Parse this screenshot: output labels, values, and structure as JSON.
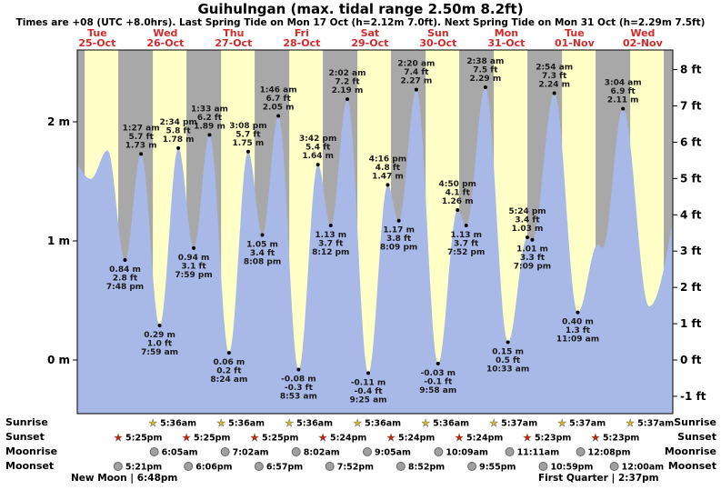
{
  "title": "Guihulngan (max. tidal range 2.50m 8.2ft)",
  "subtitle": "Times are +08 (UTC +8.0hrs). Last Spring Tide on Mon 17 Oct (h=2.12m 7.0ft). Next Spring Tide on Mon 31 Oct (h=2.29m 7.5ft)",
  "colors": {
    "day_bg": "#ffffc8",
    "night_bg": "#a8a8a8",
    "tide_fill": "#a8b9e8",
    "date_red": "#d42a2a",
    "sunrise_star": "#d4b826",
    "sunset_star": "#cc2200",
    "moon_gray": "#a0a0a0",
    "annotation_text": "#1a1a1a"
  },
  "y_axis": {
    "left_labels": [
      {
        "text": "2 m",
        "value_m": 2
      },
      {
        "text": "1 m",
        "value_m": 1
      },
      {
        "text": "0 m",
        "value_m": 0
      }
    ],
    "right_labels": [
      {
        "text": "8 ft",
        "value_ft": 8
      },
      {
        "text": "7 ft",
        "value_ft": 7
      },
      {
        "text": "6 ft",
        "value_ft": 6
      },
      {
        "text": "5 ft",
        "value_ft": 5
      },
      {
        "text": "4 ft",
        "value_ft": 4
      },
      {
        "text": "3 ft",
        "value_ft": 3
      },
      {
        "text": "2 ft",
        "value_ft": 2
      },
      {
        "text": "1 ft",
        "value_ft": 1
      },
      {
        "text": "0 ft",
        "value_ft": 0
      },
      {
        "text": "-1 ft",
        "value_ft": -1
      }
    ]
  },
  "chart_data": {
    "type": "area",
    "title": "Guihulngan (max. tidal range 2.50m 8.2ft)",
    "ylabel_left": "m",
    "ylabel_right": "ft",
    "ylim_m": [
      -0.45,
      2.6
    ],
    "days": [
      {
        "name": "Tue",
        "date": "25-Oct"
      },
      {
        "name": "Wed",
        "date": "26-Oct"
      },
      {
        "name": "Thu",
        "date": "27-Oct"
      },
      {
        "name": "Fri",
        "date": "28-Oct"
      },
      {
        "name": "Sat",
        "date": "29-Oct"
      },
      {
        "name": "Sun",
        "date": "30-Oct"
      },
      {
        "name": "Mon",
        "date": "31-Oct"
      },
      {
        "name": "Tue",
        "date": "01-Nov"
      },
      {
        "name": "Wed",
        "date": "02-Nov"
      }
    ],
    "tide_events": [
      {
        "day": 0,
        "time": "7:48 pm",
        "type": "low",
        "height_m": 0.84,
        "label_m": "0.84 m",
        "label_ft": "2.8 ft"
      },
      {
        "day": 1,
        "time": "1:27 am",
        "type": "high",
        "height_m": 1.73,
        "label_m": "1.73 m",
        "label_ft": "5.7 ft"
      },
      {
        "day": 1,
        "time": "7:59 am",
        "type": "low",
        "height_m": 0.29,
        "label_m": "0.29 m",
        "label_ft": "1.0 ft"
      },
      {
        "day": 1,
        "time": "2:34 pm",
        "type": "high",
        "height_m": 1.78,
        "label_m": "1.78 m",
        "label_ft": "5.8 ft"
      },
      {
        "day": 1,
        "time": "7:59 pm",
        "type": "low",
        "height_m": 0.94,
        "label_m": "0.94 m",
        "label_ft": "3.1 ft"
      },
      {
        "day": 2,
        "time": "1:33 am",
        "type": "high",
        "height_m": 1.89,
        "label_m": "1.89 m",
        "label_ft": "6.2 ft"
      },
      {
        "day": 2,
        "time": "8:24 am",
        "type": "low",
        "height_m": 0.06,
        "label_m": "0.06 m",
        "label_ft": "0.2 ft"
      },
      {
        "day": 2,
        "time": "3:08 pm",
        "type": "high",
        "height_m": 1.75,
        "label_m": "1.75 m",
        "label_ft": "5.7 ft"
      },
      {
        "day": 2,
        "time": "8:08 pm",
        "type": "low",
        "height_m": 1.05,
        "label_m": "1.05 m",
        "label_ft": "3.4 ft"
      },
      {
        "day": 3,
        "time": "1:46 am",
        "type": "high",
        "height_m": 2.05,
        "label_m": "2.05 m",
        "label_ft": "6.7 ft"
      },
      {
        "day": 3,
        "time": "8:53 am",
        "type": "low",
        "height_m": -0.08,
        "label_m": "-0.08 m",
        "label_ft": "-0.3 ft"
      },
      {
        "day": 3,
        "time": "3:42 pm",
        "type": "high",
        "height_m": 1.64,
        "label_m": "1.64 m",
        "label_ft": "5.4 ft"
      },
      {
        "day": 3,
        "time": "8:12 pm",
        "type": "low",
        "height_m": 1.13,
        "label_m": "1.13 m",
        "label_ft": "3.7 ft"
      },
      {
        "day": 4,
        "time": "2:02 am",
        "type": "high",
        "height_m": 2.19,
        "label_m": "2.19 m",
        "label_ft": "7.2 ft"
      },
      {
        "day": 4,
        "time": "9:25 am",
        "type": "low",
        "height_m": -0.11,
        "label_m": "-0.11 m",
        "label_ft": "-0.4 ft"
      },
      {
        "day": 4,
        "time": "4:16 pm",
        "type": "high",
        "height_m": 1.47,
        "label_m": "1.47 m",
        "label_ft": "4.8 ft"
      },
      {
        "day": 4,
        "time": "8:09 pm",
        "type": "low",
        "height_m": 1.17,
        "label_m": "1.17 m",
        "label_ft": "3.8 ft"
      },
      {
        "day": 5,
        "time": "2:20 am",
        "type": "high",
        "height_m": 2.27,
        "label_m": "2.27 m",
        "label_ft": "7.4 ft"
      },
      {
        "day": 5,
        "time": "9:58 am",
        "type": "low",
        "height_m": -0.03,
        "label_m": "-0.03 m",
        "label_ft": "-0.1 ft"
      },
      {
        "day": 5,
        "time": "4:50 pm",
        "type": "high",
        "height_m": 1.26,
        "label_m": "1.26 m",
        "label_ft": "4.1 ft"
      },
      {
        "day": 5,
        "time": "7:52 pm",
        "type": "low",
        "height_m": 1.13,
        "label_m": "1.13 m",
        "label_ft": "3.7 ft"
      },
      {
        "day": 6,
        "time": "2:38 am",
        "type": "high",
        "height_m": 2.29,
        "label_m": "2.29 m",
        "label_ft": "7.5 ft"
      },
      {
        "day": 6,
        "time": "10:33 am",
        "type": "low",
        "height_m": 0.15,
        "label_m": "0.15 m",
        "label_ft": "0.5 ft"
      },
      {
        "day": 6,
        "time": "5:24 pm",
        "type": "high",
        "height_m": 1.03,
        "label_m": "1.03 m",
        "label_ft": "3.4 ft"
      },
      {
        "day": 6,
        "time": "7:09 pm",
        "type": "low",
        "height_m": 1.01,
        "label_m": "1.01 m",
        "label_ft": "3.3 ft"
      },
      {
        "day": 7,
        "time": "2:54 am",
        "type": "high",
        "height_m": 2.24,
        "label_m": "2.24 m",
        "label_ft": "7.3 ft"
      },
      {
        "day": 7,
        "time": "11:09 am",
        "type": "low",
        "height_m": 0.4,
        "label_m": "0.40 m",
        "label_ft": "1.3 ft"
      },
      {
        "day": 8,
        "time": "3:04 am",
        "type": "high",
        "height_m": 2.11,
        "label_m": "2.11 m",
        "label_ft": "6.9 ft"
      }
    ]
  },
  "astro": {
    "rows": [
      {
        "id": "sunrise",
        "label": "Sunrise",
        "icon": "star",
        "entries": [
          {
            "day": 1,
            "time": "5:36am"
          },
          {
            "day": 2,
            "time": "5:36am"
          },
          {
            "day": 3,
            "time": "5:36am"
          },
          {
            "day": 4,
            "time": "5:36am"
          },
          {
            "day": 5,
            "time": "5:36am"
          },
          {
            "day": 6,
            "time": "5:37am"
          },
          {
            "day": 7,
            "time": "5:37am"
          },
          {
            "day": 8,
            "time": "5:37am"
          }
        ]
      },
      {
        "id": "sunset",
        "label": "Sunset",
        "icon": "star",
        "entries": [
          {
            "day": 0,
            "time": "5:25pm"
          },
          {
            "day": 1,
            "time": "5:25pm"
          },
          {
            "day": 2,
            "time": "5:25pm"
          },
          {
            "day": 3,
            "time": "5:24pm"
          },
          {
            "day": 4,
            "time": "5:24pm"
          },
          {
            "day": 5,
            "time": "5:24pm"
          },
          {
            "day": 6,
            "time": "5:23pm"
          },
          {
            "day": 7,
            "time": "5:23pm"
          }
        ]
      },
      {
        "id": "moonrise",
        "label": "Moonrise",
        "icon": "circle",
        "entries": [
          {
            "day": 1,
            "time": "6:05am"
          },
          {
            "day": 2,
            "time": "7:02am"
          },
          {
            "day": 3,
            "time": "8:02am"
          },
          {
            "day": 4,
            "time": "9:05am"
          },
          {
            "day": 5,
            "time": "10:09am"
          },
          {
            "day": 6,
            "time": "11:11am"
          },
          {
            "day": 7,
            "time": "12:08pm"
          }
        ]
      },
      {
        "id": "moonset",
        "label": "Moonset",
        "icon": "circle",
        "entries": [
          {
            "day": 0,
            "time": "5:21pm"
          },
          {
            "day": 1,
            "time": "6:06pm"
          },
          {
            "day": 2,
            "time": "6:57pm"
          },
          {
            "day": 3,
            "time": "7:52pm"
          },
          {
            "day": 4,
            "time": "8:52pm"
          },
          {
            "day": 5,
            "time": "9:55pm"
          },
          {
            "day": 6,
            "time": "10:59pm"
          },
          {
            "day": 8,
            "time": "12:00am"
          }
        ]
      }
    ],
    "phases": [
      {
        "name": "New Moon",
        "time": "6:48pm",
        "text": "New Moon | 6:48pm"
      },
      {
        "name": "First Quarter",
        "time": "2:37pm",
        "text": "First Quarter | 2:37pm"
      }
    ]
  }
}
